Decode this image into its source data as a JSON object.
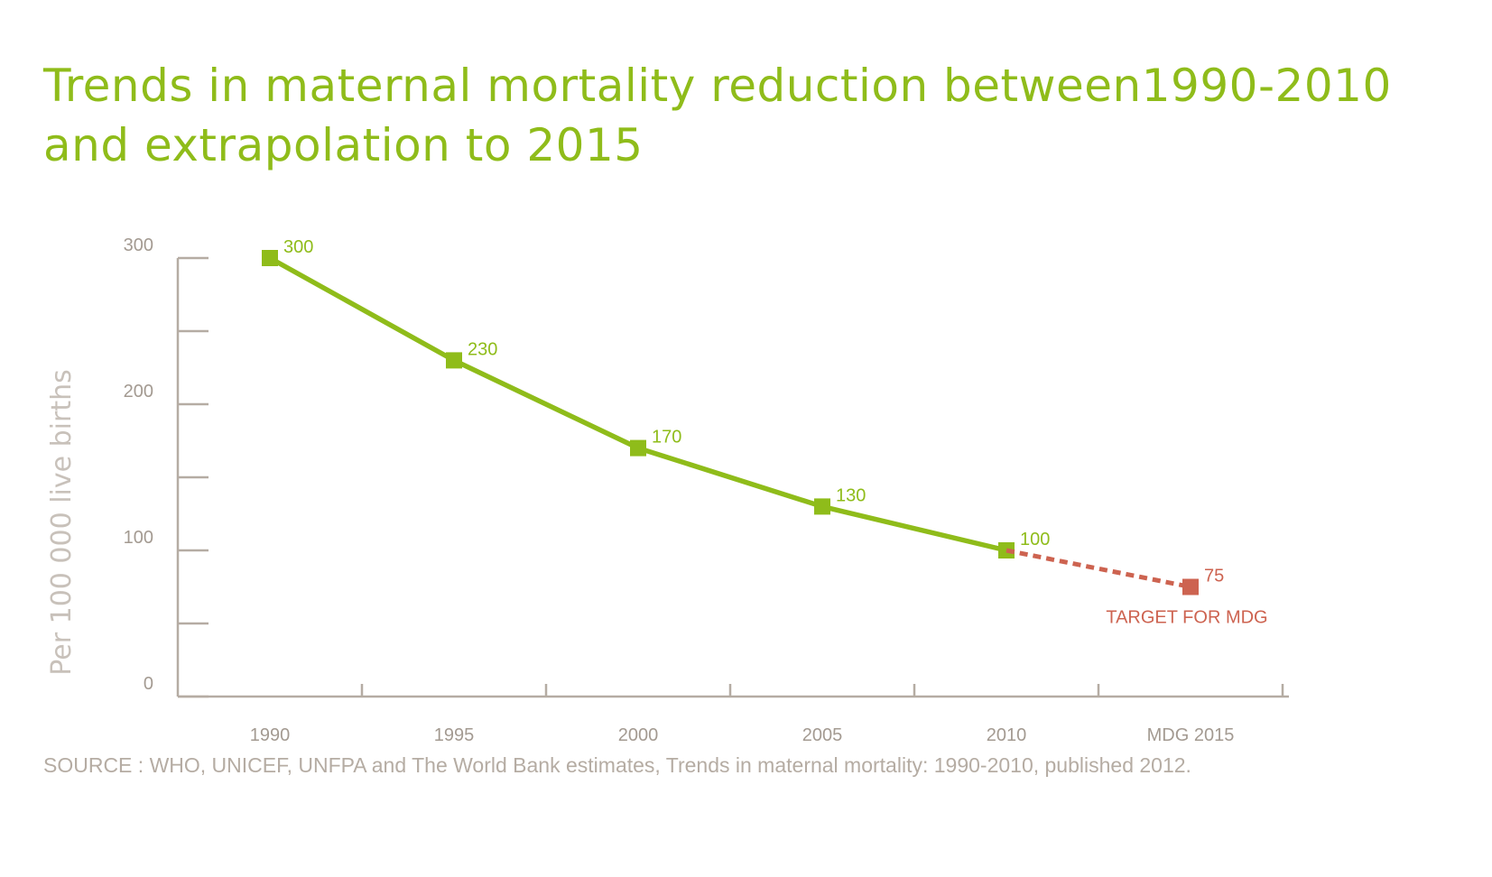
{
  "title_line1": "Trends in maternal mortality reduction between1990-2010",
  "title_line2": "and extrapolation to 2015",
  "source": "SOURCE : WHO, UNICEF, UNFPA and The World Bank estimates, Trends in maternal mortality: 1990-2010, published 2012.",
  "colors": {
    "title": "#8fbc1a",
    "series": "#8fbc1a",
    "target": "#cd6350",
    "axis": "#b5aca3"
  },
  "chart_data": {
    "type": "line",
    "title": "Trends in maternal mortality reduction between1990-2010 and extrapolation to 2015",
    "ylabel": "Per 100 000 live births",
    "xlabel": "",
    "categories": [
      "1990",
      "1995",
      "2000",
      "2005",
      "2010",
      "MDG 2015"
    ],
    "ylim": [
      0,
      300
    ],
    "y_ticks": [
      0,
      100,
      200,
      300
    ],
    "y_tick_labels": [
      "0",
      "100",
      "200",
      "300"
    ],
    "grid": false,
    "series": [
      {
        "style": "solid",
        "color": "#8fbc1a",
        "x": [
          "1990",
          "1995",
          "2000",
          "2005",
          "2010"
        ],
        "values": [
          300,
          230,
          170,
          130,
          100
        ],
        "labels": [
          "300",
          "230",
          "170",
          "130",
          "100"
        ]
      },
      {
        "style": "dashed",
        "color": "#cd6350",
        "x": [
          "2010",
          "MDG 2015"
        ],
        "values": [
          100,
          75
        ],
        "labels": [
          "",
          "75"
        ]
      }
    ],
    "annotations": [
      {
        "text": "TARGET FOR MDG",
        "x": "MDG 2015",
        "y": 75
      }
    ]
  }
}
